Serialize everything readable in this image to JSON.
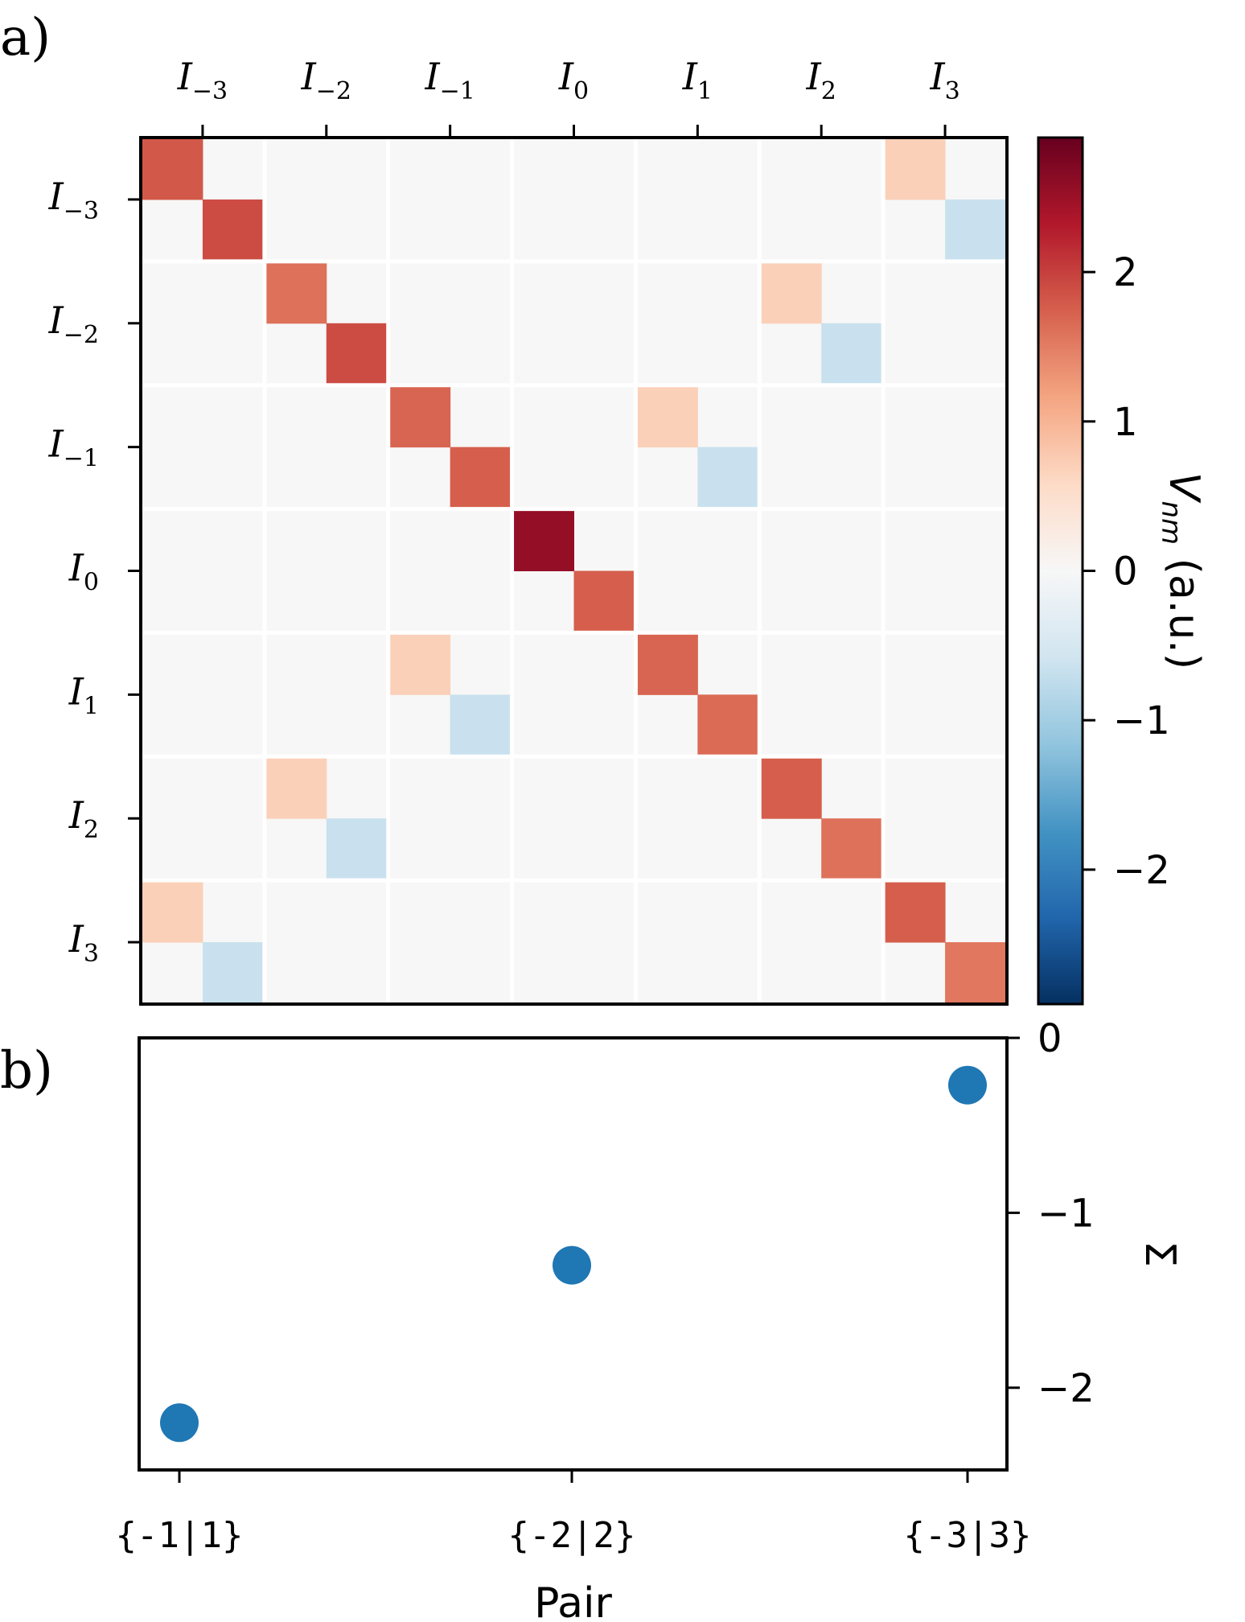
{
  "panels": {
    "a_label": "a)",
    "b_label": "b)"
  },
  "chart_data": [
    {
      "type": "heatmap",
      "panel": "a",
      "block_labels": [
        {
          "sym": "I",
          "sub": "−3"
        },
        {
          "sym": "I",
          "sub": "−2"
        },
        {
          "sym": "I",
          "sub": "−1"
        },
        {
          "sym": "I",
          "sub": "0"
        },
        {
          "sym": "I",
          "sub": "1"
        },
        {
          "sym": "I",
          "sub": "2"
        },
        {
          "sym": "I",
          "sub": "3"
        }
      ],
      "matrix_size": 14,
      "cell_values": [
        {
          "row": 0,
          "col": 0,
          "value": 1.8
        },
        {
          "row": 1,
          "col": 1,
          "value": 1.9
        },
        {
          "row": 2,
          "col": 2,
          "value": 1.6
        },
        {
          "row": 3,
          "col": 3,
          "value": 1.9
        },
        {
          "row": 4,
          "col": 4,
          "value": 1.7
        },
        {
          "row": 5,
          "col": 5,
          "value": 1.75
        },
        {
          "row": 6,
          "col": 6,
          "value": 2.55
        },
        {
          "row": 7,
          "col": 7,
          "value": 1.75
        },
        {
          "row": 8,
          "col": 8,
          "value": 1.7
        },
        {
          "row": 9,
          "col": 9,
          "value": 1.65
        },
        {
          "row": 10,
          "col": 10,
          "value": 1.75
        },
        {
          "row": 11,
          "col": 11,
          "value": 1.6
        },
        {
          "row": 12,
          "col": 12,
          "value": 1.75
        },
        {
          "row": 13,
          "col": 13,
          "value": 1.55
        },
        {
          "row": 0,
          "col": 12,
          "value": 0.7
        },
        {
          "row": 1,
          "col": 13,
          "value": -0.65
        },
        {
          "row": 12,
          "col": 0,
          "value": 0.7
        },
        {
          "row": 13,
          "col": 1,
          "value": -0.65
        },
        {
          "row": 2,
          "col": 10,
          "value": 0.7
        },
        {
          "row": 3,
          "col": 11,
          "value": -0.65
        },
        {
          "row": 10,
          "col": 2,
          "value": 0.7
        },
        {
          "row": 11,
          "col": 3,
          "value": -0.65
        },
        {
          "row": 4,
          "col": 8,
          "value": 0.7
        },
        {
          "row": 5,
          "col": 9,
          "value": -0.65
        },
        {
          "row": 8,
          "col": 4,
          "value": 0.7
        },
        {
          "row": 9,
          "col": 5,
          "value": -0.65
        }
      ],
      "colorbar": {
        "label_main": "V",
        "label_sub": "nm",
        "label_units": " (a.u.)",
        "range": [
          -2.9,
          2.9
        ],
        "ticks": [
          "2",
          "1",
          "0",
          "−1",
          "−2"
        ],
        "tick_values": [
          2,
          1,
          0,
          -1,
          -2
        ],
        "colormap": "RdBu_r"
      }
    },
    {
      "type": "scatter",
      "panel": "b",
      "categories": [
        "{-1|1}",
        "{-2|2}",
        "{-3|3}"
      ],
      "values": [
        -2.2,
        -1.3,
        -0.27
      ],
      "xlabel": "Pair",
      "ylabel": "Σ",
      "ylim": [
        -2.47,
        0.0
      ],
      "yticks": [
        "0",
        "−1",
        "−2"
      ],
      "ytick_values": [
        0,
        -1,
        -2
      ],
      "color": "#1f77b4"
    }
  ]
}
